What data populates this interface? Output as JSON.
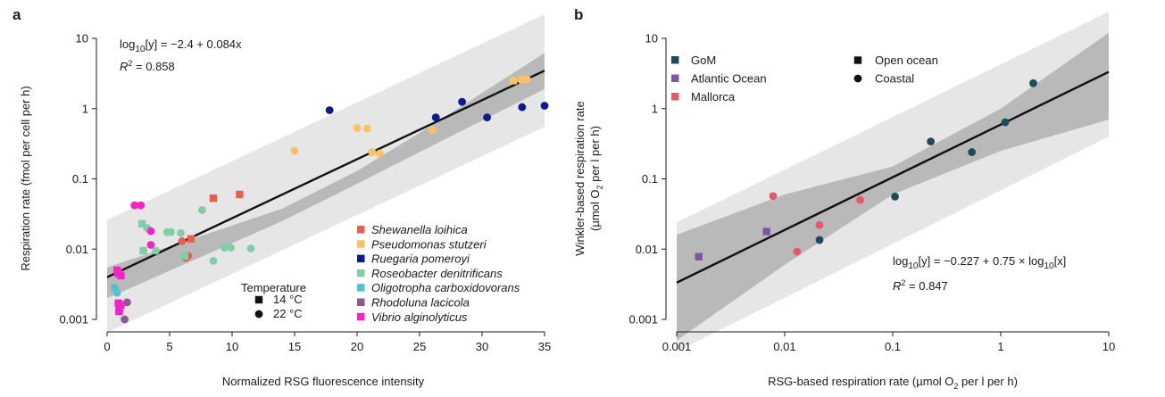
{
  "chart_data": [
    {
      "panel": "a",
      "type": "scatter",
      "x_scale": "linear",
      "y_scale": "log",
      "xlabel": "Normalized RSG fluorescence intensity",
      "ylabel": "Respiration rate (fmol per cell per h)",
      "xlim": [
        0,
        35
      ],
      "ylim": [
        0.0008,
        14
      ],
      "x_ticks": [
        0,
        5,
        10,
        15,
        20,
        25,
        30,
        35
      ],
      "y_ticks": [
        0.001,
        0.01,
        0.1,
        1,
        10
      ],
      "y_tick_labels": [
        "0.001",
        "0.01",
        "0.1",
        "1",
        "10"
      ],
      "equation": {
        "prefix": "log",
        "sub": "10",
        "body": "[y] = −2.4 + 0.084x"
      },
      "r2": {
        "symbol": "R",
        "sup": "2",
        "body": " = 0.858"
      },
      "fit": {
        "intercept": -2.4,
        "slope": 0.084,
        "x_range": [
          0,
          35
        ]
      },
      "bands": {
        "inner": [
          [
            0,
            0.002,
            0.0055
          ],
          [
            14,
            0.025,
            0.0375
          ],
          [
            20,
            0.085,
            0.13
          ],
          [
            25,
            0.24,
            0.45
          ],
          [
            35,
            1.9,
            6.2
          ]
        ],
        "outer": [
          [
            0,
            0.00065,
            0.026
          ],
          [
            35,
            0.55,
            22
          ]
        ]
      },
      "temperature_legend": {
        "title": "Temperature",
        "items": [
          {
            "shape": "square",
            "label": "14 °C"
          },
          {
            "shape": "circle",
            "label": "22 °C"
          }
        ]
      },
      "series": [
        {
          "name": "Shewanella loihica",
          "color": "#e8604c",
          "points": [
            [
              8.5,
              0.053,
              "square"
            ],
            [
              10.6,
              0.06,
              "square"
            ],
            [
              6.0,
              0.013,
              "circle"
            ],
            [
              6.3,
              0.0075,
              "circle"
            ],
            [
              6.7,
              0.014,
              "square"
            ],
            [
              6.5,
              0.008,
              "circle"
            ]
          ]
        },
        {
          "name": "Pseudomonas stutzeri",
          "color": "#fbc265",
          "points": [
            [
              15.0,
              0.25,
              "circle"
            ],
            [
              20.0,
              0.53,
              "circle"
            ],
            [
              20.8,
              0.52,
              "circle"
            ],
            [
              21.2,
              0.24,
              "circle"
            ],
            [
              21.8,
              0.23,
              "circle"
            ],
            [
              26.0,
              0.5,
              "circle"
            ],
            [
              32.5,
              2.5,
              "square"
            ],
            [
              33.2,
              2.6,
              "square"
            ],
            [
              33.6,
              2.6,
              "circle"
            ]
          ]
        },
        {
          "name": "Ruegaria pomeroyi",
          "color": "#0c1b8c",
          "points": [
            [
              17.8,
              0.95,
              "circle"
            ],
            [
              26.3,
              0.75,
              "circle"
            ],
            [
              28.4,
              1.25,
              "circle"
            ],
            [
              30.4,
              0.75,
              "circle"
            ],
            [
              33.2,
              1.05,
              "circle"
            ],
            [
              35.0,
              1.1,
              "circle"
            ]
          ]
        },
        {
          "name": "Roseobacter denitrificans",
          "color": "#7fcfa6",
          "points": [
            [
              2.8,
              0.023,
              "square"
            ],
            [
              3.2,
              0.02,
              "circle"
            ],
            [
              2.9,
              0.0095,
              "square"
            ],
            [
              3.9,
              0.0095,
              "circle"
            ],
            [
              4.8,
              0.0175,
              "circle"
            ],
            [
              5.1,
              0.0175,
              "circle"
            ],
            [
              5.9,
              0.017,
              "circle"
            ],
            [
              6.2,
              0.008,
              "square"
            ],
            [
              7.6,
              0.036,
              "circle"
            ],
            [
              8.5,
              0.0068,
              "circle"
            ],
            [
              9.4,
              0.0105,
              "circle"
            ],
            [
              9.9,
              0.0105,
              "circle"
            ],
            [
              11.5,
              0.0102,
              "circle"
            ]
          ]
        },
        {
          "name": "Oligotropha carboxidovorans",
          "color": "#4ec3cf",
          "points": [
            [
              0.6,
              0.0028,
              "circle"
            ],
            [
              0.8,
              0.0024,
              "circle"
            ]
          ]
        },
        {
          "name": "Rhodoluna lacicola",
          "color": "#8c5a8a",
          "points": [
            [
              1.6,
              0.00175,
              "circle"
            ],
            [
              1.4,
              0.001,
              "circle"
            ]
          ]
        },
        {
          "name": "Vibrio alginolyticus",
          "color": "#f224c8",
          "points": [
            [
              2.2,
              0.042,
              "circle"
            ],
            [
              2.7,
              0.042,
              "circle"
            ],
            [
              3.5,
              0.018,
              "circle"
            ],
            [
              3.5,
              0.0115,
              "circle"
            ],
            [
              0.8,
              0.005,
              "square"
            ],
            [
              0.9,
              0.0045,
              "square"
            ],
            [
              1.1,
              0.0042,
              "square"
            ],
            [
              0.9,
              0.0017,
              "square"
            ],
            [
              1.0,
              0.0014,
              "square"
            ],
            [
              1.1,
              0.0016,
              "square"
            ],
            [
              0.95,
              0.0013,
              "square"
            ]
          ]
        }
      ]
    },
    {
      "panel": "b",
      "type": "scatter",
      "x_scale": "log",
      "y_scale": "log",
      "xlabel": {
        "pre": "RSG-based respiration rate (µmol O",
        "sub": "2",
        "post": " per l per h)"
      },
      "ylabel": {
        "line1": "Winkler-based respiration rate",
        "pre": "(µmol O",
        "sub": "2",
        "post": " per l per h)"
      },
      "xlim": [
        0.001,
        10
      ],
      "ylim": [
        0.0008,
        14
      ],
      "x_ticks": [
        0.001,
        0.01,
        0.1,
        1,
        10
      ],
      "x_tick_labels": [
        "0.001",
        "0.01",
        "0.1",
        "1",
        "10"
      ],
      "y_ticks": [
        0.001,
        0.01,
        0.1,
        1,
        10
      ],
      "y_tick_labels": [
        "0.001",
        "0.01",
        "0.1",
        "1",
        "10"
      ],
      "equation": {
        "prefix": "log",
        "sub": "10",
        "body": "[y] = −0.227 + 0.75 × log",
        "sub2": "10",
        "tail": "[x]"
      },
      "r2": {
        "symbol": "R",
        "sup": "2",
        "body": " = 0.847"
      },
      "fit": {
        "intercept": -0.227,
        "slope": 0.75,
        "x_range": [
          0.001,
          10
        ]
      },
      "bands": {
        "inner": [
          [
            0.001,
            0.0005,
            0.016
          ],
          [
            0.01,
            0.006,
            0.06
          ],
          [
            0.1,
            0.06,
            0.15
          ],
          [
            1,
            0.25,
            1.0
          ],
          [
            10,
            0.7,
            12
          ]
        ],
        "outer": [
          [
            0.001,
            0.00035,
            0.024
          ],
          [
            10,
            0.4,
            24
          ]
        ]
      },
      "legend_sites": [
        {
          "label": "GoM",
          "color": "#1d4a5c"
        },
        {
          "label": "Atlantic Ocean",
          "color": "#7a57a0"
        },
        {
          "label": "Mallorca",
          "color": "#e8586c"
        }
      ],
      "legend_types": [
        {
          "shape": "square",
          "label": "Open ocean"
        },
        {
          "shape": "circle",
          "label": "Coastal"
        }
      ],
      "points": [
        {
          "x": 0.0016,
          "y": 0.0078,
          "site": "Atlantic Ocean",
          "shape": "square"
        },
        {
          "x": 0.0068,
          "y": 0.0178,
          "site": "Atlantic Ocean",
          "shape": "square"
        },
        {
          "x": 0.0078,
          "y": 0.057,
          "site": "Mallorca",
          "shape": "circle"
        },
        {
          "x": 0.013,
          "y": 0.0092,
          "site": "Mallorca",
          "shape": "circle"
        },
        {
          "x": 0.021,
          "y": 0.022,
          "site": "Mallorca",
          "shape": "circle"
        },
        {
          "x": 0.05,
          "y": 0.05,
          "site": "Mallorca",
          "shape": "circle"
        },
        {
          "x": 0.021,
          "y": 0.0135,
          "site": "GoM",
          "shape": "circle"
        },
        {
          "x": 0.105,
          "y": 0.056,
          "site": "GoM",
          "shape": "circle"
        },
        {
          "x": 0.225,
          "y": 0.34,
          "site": "GoM",
          "shape": "circle"
        },
        {
          "x": 0.54,
          "y": 0.24,
          "site": "GoM",
          "shape": "circle"
        },
        {
          "x": 1.1,
          "y": 0.64,
          "site": "GoM",
          "shape": "circle"
        },
        {
          "x": 2.0,
          "y": 2.3,
          "site": "GoM",
          "shape": "circle"
        }
      ]
    }
  ]
}
